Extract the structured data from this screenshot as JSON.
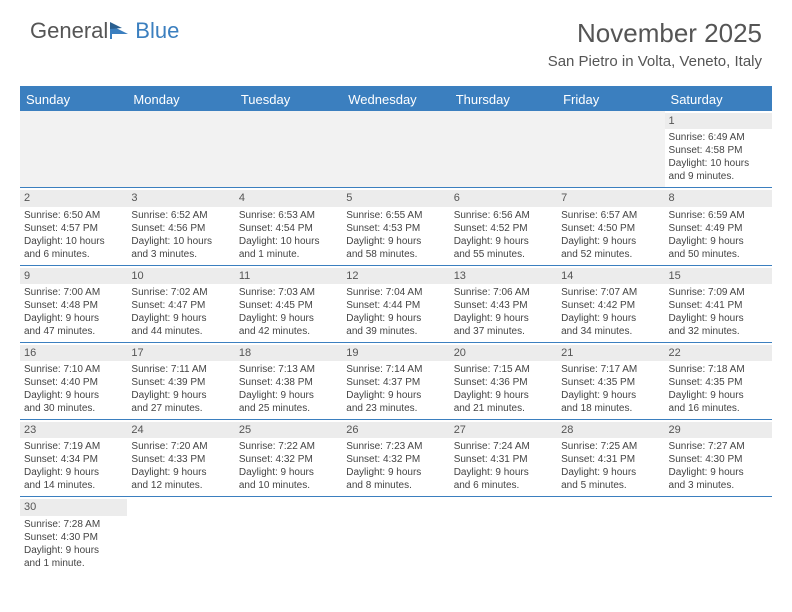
{
  "logo": {
    "textA": "General",
    "textB": "Blue"
  },
  "title": "November 2025",
  "location": "San Pietro in Volta, Veneto, Italy",
  "colors": {
    "accent": "#3b7fbf",
    "headerText": "#ffffff",
    "bodyText": "#444444",
    "titleText": "#555555",
    "emptyBg": "#f2f2f2",
    "dayBarBg": "#ececec",
    "background": "#ffffff"
  },
  "typography": {
    "title_fontsize": 26,
    "location_fontsize": 15,
    "weekday_fontsize": 13,
    "daynum_fontsize": 11,
    "cell_fontsize": 10,
    "logo_fontsize": 22
  },
  "weekdays": [
    "Sunday",
    "Monday",
    "Tuesday",
    "Wednesday",
    "Thursday",
    "Friday",
    "Saturday"
  ],
  "weeks": [
    [
      null,
      null,
      null,
      null,
      null,
      null,
      {
        "n": "1",
        "sr": "Sunrise: 6:49 AM",
        "ss": "Sunset: 4:58 PM",
        "d1": "Daylight: 10 hours",
        "d2": "and 9 minutes."
      }
    ],
    [
      {
        "n": "2",
        "sr": "Sunrise: 6:50 AM",
        "ss": "Sunset: 4:57 PM",
        "d1": "Daylight: 10 hours",
        "d2": "and 6 minutes."
      },
      {
        "n": "3",
        "sr": "Sunrise: 6:52 AM",
        "ss": "Sunset: 4:56 PM",
        "d1": "Daylight: 10 hours",
        "d2": "and 3 minutes."
      },
      {
        "n": "4",
        "sr": "Sunrise: 6:53 AM",
        "ss": "Sunset: 4:54 PM",
        "d1": "Daylight: 10 hours",
        "d2": "and 1 minute."
      },
      {
        "n": "5",
        "sr": "Sunrise: 6:55 AM",
        "ss": "Sunset: 4:53 PM",
        "d1": "Daylight: 9 hours",
        "d2": "and 58 minutes."
      },
      {
        "n": "6",
        "sr": "Sunrise: 6:56 AM",
        "ss": "Sunset: 4:52 PM",
        "d1": "Daylight: 9 hours",
        "d2": "and 55 minutes."
      },
      {
        "n": "7",
        "sr": "Sunrise: 6:57 AM",
        "ss": "Sunset: 4:50 PM",
        "d1": "Daylight: 9 hours",
        "d2": "and 52 minutes."
      },
      {
        "n": "8",
        "sr": "Sunrise: 6:59 AM",
        "ss": "Sunset: 4:49 PM",
        "d1": "Daylight: 9 hours",
        "d2": "and 50 minutes."
      }
    ],
    [
      {
        "n": "9",
        "sr": "Sunrise: 7:00 AM",
        "ss": "Sunset: 4:48 PM",
        "d1": "Daylight: 9 hours",
        "d2": "and 47 minutes."
      },
      {
        "n": "10",
        "sr": "Sunrise: 7:02 AM",
        "ss": "Sunset: 4:47 PM",
        "d1": "Daylight: 9 hours",
        "d2": "and 44 minutes."
      },
      {
        "n": "11",
        "sr": "Sunrise: 7:03 AM",
        "ss": "Sunset: 4:45 PM",
        "d1": "Daylight: 9 hours",
        "d2": "and 42 minutes."
      },
      {
        "n": "12",
        "sr": "Sunrise: 7:04 AM",
        "ss": "Sunset: 4:44 PM",
        "d1": "Daylight: 9 hours",
        "d2": "and 39 minutes."
      },
      {
        "n": "13",
        "sr": "Sunrise: 7:06 AM",
        "ss": "Sunset: 4:43 PM",
        "d1": "Daylight: 9 hours",
        "d2": "and 37 minutes."
      },
      {
        "n": "14",
        "sr": "Sunrise: 7:07 AM",
        "ss": "Sunset: 4:42 PM",
        "d1": "Daylight: 9 hours",
        "d2": "and 34 minutes."
      },
      {
        "n": "15",
        "sr": "Sunrise: 7:09 AM",
        "ss": "Sunset: 4:41 PM",
        "d1": "Daylight: 9 hours",
        "d2": "and 32 minutes."
      }
    ],
    [
      {
        "n": "16",
        "sr": "Sunrise: 7:10 AM",
        "ss": "Sunset: 4:40 PM",
        "d1": "Daylight: 9 hours",
        "d2": "and 30 minutes."
      },
      {
        "n": "17",
        "sr": "Sunrise: 7:11 AM",
        "ss": "Sunset: 4:39 PM",
        "d1": "Daylight: 9 hours",
        "d2": "and 27 minutes."
      },
      {
        "n": "18",
        "sr": "Sunrise: 7:13 AM",
        "ss": "Sunset: 4:38 PM",
        "d1": "Daylight: 9 hours",
        "d2": "and 25 minutes."
      },
      {
        "n": "19",
        "sr": "Sunrise: 7:14 AM",
        "ss": "Sunset: 4:37 PM",
        "d1": "Daylight: 9 hours",
        "d2": "and 23 minutes."
      },
      {
        "n": "20",
        "sr": "Sunrise: 7:15 AM",
        "ss": "Sunset: 4:36 PM",
        "d1": "Daylight: 9 hours",
        "d2": "and 21 minutes."
      },
      {
        "n": "21",
        "sr": "Sunrise: 7:17 AM",
        "ss": "Sunset: 4:35 PM",
        "d1": "Daylight: 9 hours",
        "d2": "and 18 minutes."
      },
      {
        "n": "22",
        "sr": "Sunrise: 7:18 AM",
        "ss": "Sunset: 4:35 PM",
        "d1": "Daylight: 9 hours",
        "d2": "and 16 minutes."
      }
    ],
    [
      {
        "n": "23",
        "sr": "Sunrise: 7:19 AM",
        "ss": "Sunset: 4:34 PM",
        "d1": "Daylight: 9 hours",
        "d2": "and 14 minutes."
      },
      {
        "n": "24",
        "sr": "Sunrise: 7:20 AM",
        "ss": "Sunset: 4:33 PM",
        "d1": "Daylight: 9 hours",
        "d2": "and 12 minutes."
      },
      {
        "n": "25",
        "sr": "Sunrise: 7:22 AM",
        "ss": "Sunset: 4:32 PM",
        "d1": "Daylight: 9 hours",
        "d2": "and 10 minutes."
      },
      {
        "n": "26",
        "sr": "Sunrise: 7:23 AM",
        "ss": "Sunset: 4:32 PM",
        "d1": "Daylight: 9 hours",
        "d2": "and 8 minutes."
      },
      {
        "n": "27",
        "sr": "Sunrise: 7:24 AM",
        "ss": "Sunset: 4:31 PM",
        "d1": "Daylight: 9 hours",
        "d2": "and 6 minutes."
      },
      {
        "n": "28",
        "sr": "Sunrise: 7:25 AM",
        "ss": "Sunset: 4:31 PM",
        "d1": "Daylight: 9 hours",
        "d2": "and 5 minutes."
      },
      {
        "n": "29",
        "sr": "Sunrise: 7:27 AM",
        "ss": "Sunset: 4:30 PM",
        "d1": "Daylight: 9 hours",
        "d2": "and 3 minutes."
      }
    ],
    [
      {
        "n": "30",
        "sr": "Sunrise: 7:28 AM",
        "ss": "Sunset: 4:30 PM",
        "d1": "Daylight: 9 hours",
        "d2": "and 1 minute."
      },
      null,
      null,
      null,
      null,
      null,
      null
    ]
  ]
}
